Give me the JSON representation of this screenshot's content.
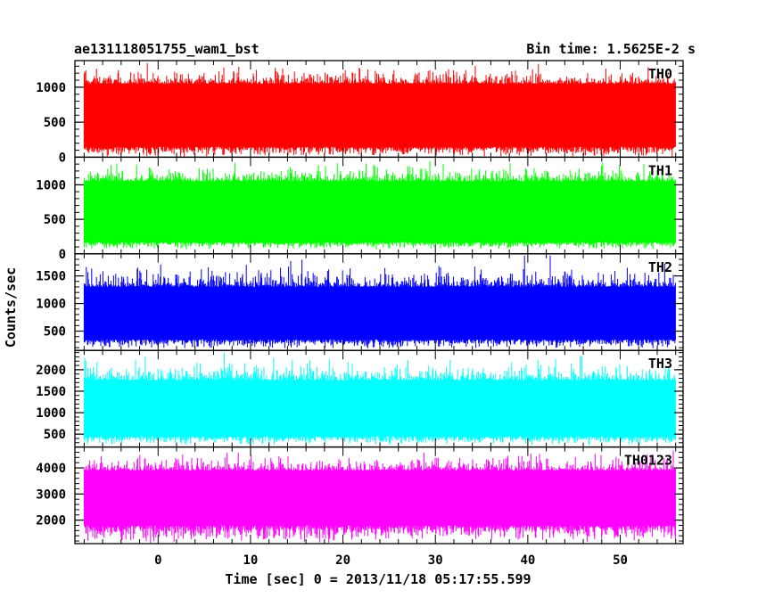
{
  "header": {
    "title": "ae131118051755_wam1_bst",
    "bin_time": "Bin time: 1.5625E-2 s"
  },
  "chart_data": {
    "type": "line",
    "title": "ae131118051755_wam1_bst",
    "xlabel": "Time [sec] 0 = 2013/11/18 05:17:55.599",
    "ylabel": "Counts/sec",
    "xlim": [
      -9,
      56.8
    ],
    "x_ticks": [
      0,
      10,
      20,
      30,
      40,
      50
    ],
    "x_ticklabels": [
      "0",
      "10",
      "20",
      "30",
      "40",
      "50"
    ],
    "data_x_range": [
      -8,
      56
    ],
    "grid": false,
    "panels": [
      {
        "name": "TH0",
        "color": "#ff0000",
        "ylim": [
          0,
          1380
        ],
        "ticks": [
          0,
          500,
          1000
        ],
        "ticklabels": [
          "0",
          "500",
          "1000"
        ],
        "band": [
          150,
          1050
        ],
        "lo": 0,
        "hi": 1380
      },
      {
        "name": "TH1",
        "color": "#00ff00",
        "ylim": [
          0,
          1400
        ],
        "ticks": [
          0,
          500,
          1000
        ],
        "ticklabels": [
          "0",
          "500",
          "1000"
        ],
        "band": [
          170,
          1050
        ],
        "lo": 60,
        "hi": 1400
      },
      {
        "name": "TH2",
        "color": "#0000ff",
        "ylim": [
          150,
          1900
        ],
        "ticks": [
          500,
          1000,
          1500
        ],
        "ticklabels": [
          "500",
          "1000",
          "1500"
        ],
        "band": [
          350,
          1300
        ],
        "lo": 180,
        "hi": 1900
      },
      {
        "name": "TH3",
        "color": "#00ffff",
        "ylim": [
          200,
          2450
        ],
        "ticks": [
          500,
          1000,
          1500,
          2000
        ],
        "ticklabels": [
          "500",
          "1000",
          "1500",
          "2000"
        ],
        "band": [
          450,
          1750
        ],
        "lo": 230,
        "hi": 2450
      },
      {
        "name": "TH0123",
        "color": "#ff00ff",
        "ylim": [
          1100,
          4800
        ],
        "ticks": [
          2000,
          3000,
          4000
        ],
        "ticklabels": [
          "2000",
          "3000",
          "4000"
        ],
        "band": [
          1800,
          3900
        ],
        "lo": 1100,
        "hi": 4800
      }
    ]
  }
}
